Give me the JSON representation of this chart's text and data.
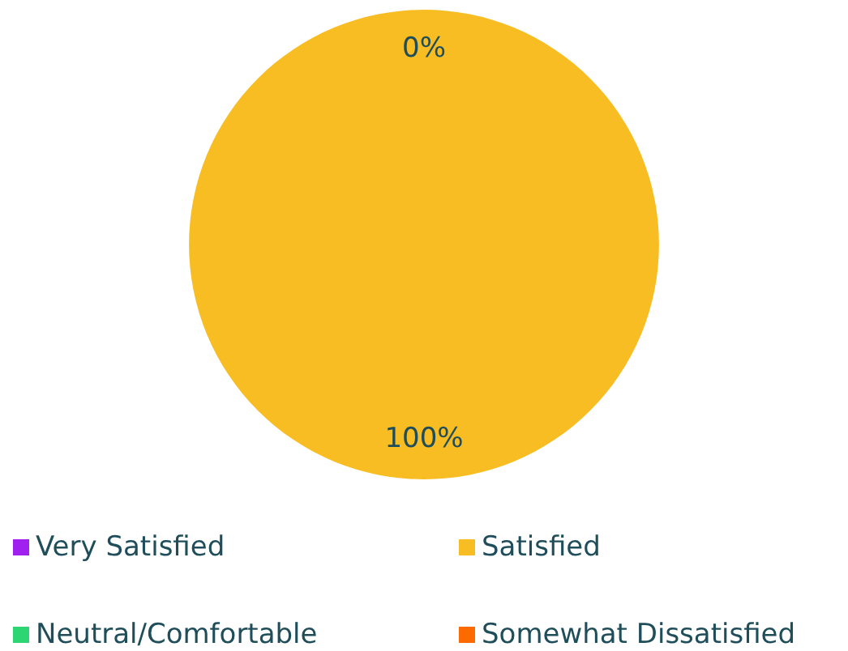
{
  "chart_data": {
    "type": "pie",
    "categories": [
      "Very Satisfied",
      "Satisfied",
      "Neutral/Comfortable",
      "Somewhat Dissatisfied"
    ],
    "values": [
      0,
      100,
      0,
      0
    ],
    "colors": [
      "#a020f0",
      "#f7bd22",
      "#2ed573",
      "#ff6a00"
    ],
    "value_labels": [
      "0%",
      "100%",
      null,
      null
    ],
    "legend": "bottom"
  }
}
